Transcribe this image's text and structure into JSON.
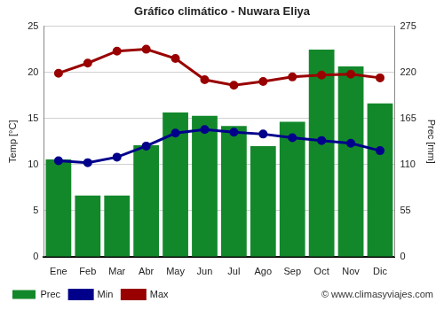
{
  "chart_data": {
    "type": "bar",
    "title": "Gráfico climático - Nuwara Eliya",
    "annotation": "© www.climasyviajes.com",
    "categories": [
      "Ene",
      "Feb",
      "Mar",
      "Abr",
      "May",
      "Jun",
      "Jul",
      "Ago",
      "Sep",
      "Oct",
      "Nov",
      "Dic"
    ],
    "series": [
      {
        "name": "Prec",
        "type": "bar",
        "color": "#13882b",
        "axis": "y2",
        "values": [
          116,
          73,
          73,
          133,
          172,
          168,
          156,
          132,
          161,
          247,
          227,
          183
        ]
      },
      {
        "name": "Min",
        "type": "line",
        "color": "#00008b",
        "marker": "circle",
        "values": [
          10.4,
          10.2,
          10.8,
          12.0,
          13.4,
          13.8,
          13.5,
          13.3,
          12.9,
          12.6,
          12.3,
          11.5
        ]
      },
      {
        "name": "Max",
        "type": "line",
        "color": "#990000",
        "marker": "circle",
        "values": [
          19.9,
          21.0,
          22.3,
          22.5,
          21.5,
          19.2,
          18.6,
          19.0,
          19.5,
          19.7,
          19.8,
          19.4
        ]
      }
    ],
    "y_label": "Temp [°C]",
    "y2_label": "Prec [mm]",
    "ylim": [
      0,
      25
    ],
    "yticks": [
      0,
      5,
      10,
      15,
      20,
      25
    ],
    "y2lim": [
      0,
      275
    ],
    "y2ticks": [
      0,
      55,
      110,
      165,
      220,
      275
    ],
    "grid": true,
    "legend": "bottom left"
  }
}
